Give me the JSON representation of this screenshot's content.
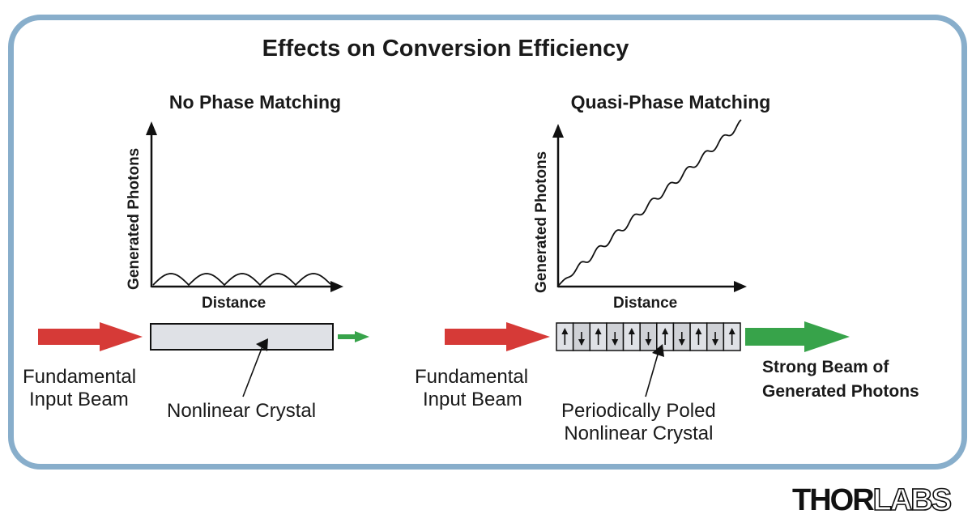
{
  "title": "Effects on Conversion Efficiency",
  "panels": {
    "left": {
      "title": "No Phase Matching",
      "y_axis": "Generated Photons",
      "x_axis": "Distance",
      "input_label": [
        "Fundamental",
        "Input Beam"
      ],
      "crystal_label": "Nonlinear Crystal"
    },
    "right": {
      "title": "Quasi-Phase Matching",
      "y_axis": "Generated Photons",
      "x_axis": "Distance",
      "input_label": [
        "Fundamental",
        "Input Beam"
      ],
      "crystal_label": [
        "Periodically Poled",
        "Nonlinear Crystal"
      ],
      "output_label": [
        "Strong Beam of",
        "Generated Photons"
      ],
      "domain_orientation": [
        "up",
        "down",
        "up",
        "down",
        "up",
        "down",
        "up",
        "down",
        "up",
        "down",
        "up"
      ]
    }
  },
  "colors": {
    "frame": "#88aecb",
    "input_beam": "#d63a37",
    "output_beam": "#37a34a",
    "crystal_fill": "#dfe1e6",
    "domain_dark": "#cfd1d6"
  },
  "logo": {
    "part1": "THOR",
    "part2": "LABS"
  }
}
